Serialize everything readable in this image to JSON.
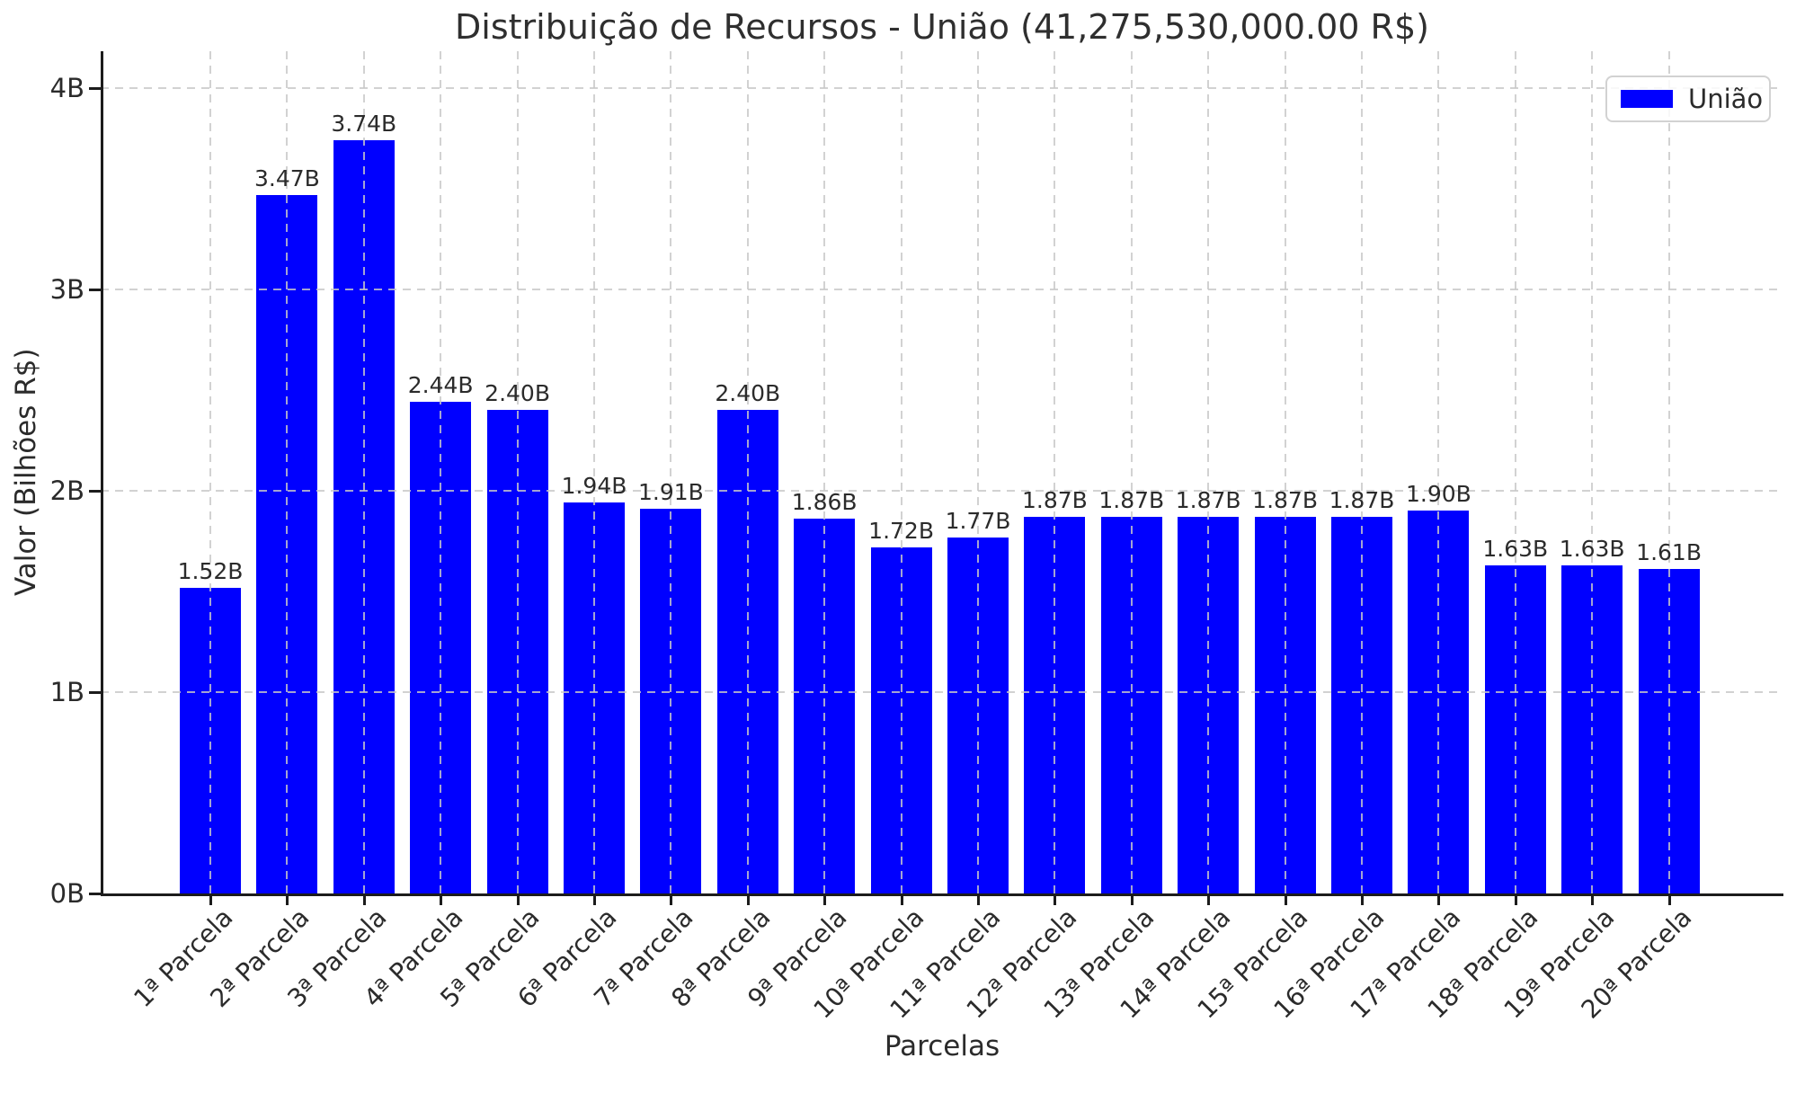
{
  "title": "Distribuição de Recursos - União (41,275,530,000.00 R$)",
  "legend": {
    "label": "União",
    "position": "upper right"
  },
  "colors": {
    "bar": "#0000ff",
    "text": "#2b2b2b",
    "grid": "#c8c8c8",
    "spine": "#1c1c1c"
  },
  "chart_data": {
    "type": "bar",
    "title": "Distribuição de Recursos - União (41,275,530,000.00 R$)",
    "xlabel": "Parcelas",
    "ylabel": "Valor (Bilhões R$)",
    "categories": [
      "1ª Parcela",
      "2ª Parcela",
      "3ª Parcela",
      "4ª Parcela",
      "5ª Parcela",
      "6ª Parcela",
      "7ª Parcela",
      "8ª Parcela",
      "9ª Parcela",
      "10ª Parcela",
      "11ª Parcela",
      "12ª Parcela",
      "13ª Parcela",
      "14ª Parcela",
      "15ª Parcela",
      "16ª Parcela",
      "17ª Parcela",
      "18ª Parcela",
      "19ª Parcela",
      "20ª Parcela"
    ],
    "values": [
      1.52,
      3.47,
      3.74,
      2.44,
      2.4,
      1.94,
      1.91,
      2.4,
      1.86,
      1.72,
      1.77,
      1.87,
      1.87,
      1.87,
      1.87,
      1.87,
      1.9,
      1.63,
      1.63,
      1.61
    ],
    "bar_labels": [
      "1.52B",
      "3.47B",
      "3.74B",
      "2.44B",
      "2.40B",
      "1.94B",
      "1.91B",
      "2.40B",
      "1.86B",
      "1.72B",
      "1.77B",
      "1.87B",
      "1.87B",
      "1.87B",
      "1.87B",
      "1.87B",
      "1.90B",
      "1.63B",
      "1.63B",
      "1.61B"
    ],
    "unit": "B",
    "y_ticks": [
      {
        "value": 0,
        "label": "0B"
      },
      {
        "value": 1,
        "label": "1B"
      },
      {
        "value": 2,
        "label": "2B"
      },
      {
        "value": 3,
        "label": "3B"
      },
      {
        "value": 4,
        "label": "4B"
      }
    ],
    "ylim": [
      0,
      4.18
    ],
    "legend_entries": [
      "União"
    ],
    "series_color": "#0000ff",
    "grid": "dashed, drawn above bars, horizontal and vertical at bar centers",
    "x_tick_rotation_deg": 45
  }
}
